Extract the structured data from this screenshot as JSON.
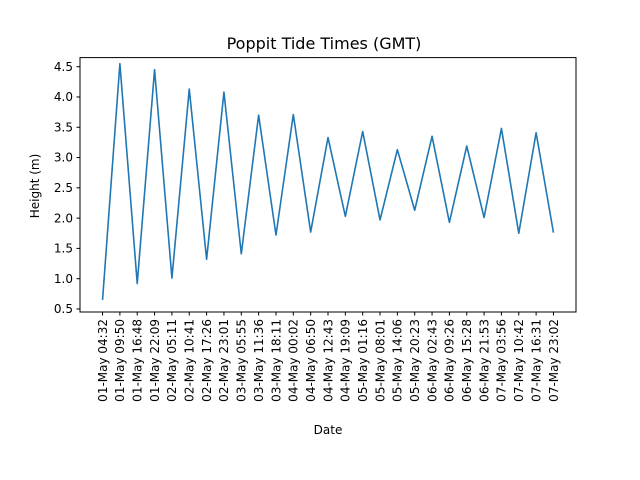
{
  "chart_data": {
    "type": "line",
    "title": "Poppit Tide Times (GMT)",
    "xlabel": "Date",
    "ylabel": "Height (m)",
    "ylim": [
      0.45,
      4.65
    ],
    "yticks": [
      "0.5",
      "1.0",
      "1.5",
      "2.0",
      "2.5",
      "3.0",
      "3.5",
      "4.0",
      "4.5"
    ],
    "grid": false,
    "line_color": "#1f77b4",
    "x": [
      "01-May 04:32",
      "01-May 09:50",
      "01-May 16:48",
      "01-May 22:09",
      "02-May 05:11",
      "02-May 10:41",
      "02-May 17:26",
      "02-May 23:01",
      "03-May 05:55",
      "03-May 11:36",
      "03-May 18:11",
      "04-May 00:02",
      "04-May 06:50",
      "04-May 12:43",
      "04-May 19:09",
      "05-May 01:16",
      "05-May 08:01",
      "05-May 14:06",
      "05-May 20:23",
      "06-May 02:43",
      "06-May 09:26",
      "06-May 15:28",
      "06-May 21:53",
      "07-May 03:56",
      "07-May 10:42",
      "07-May 16:31",
      "07-May 23:02"
    ],
    "values": [
      0.65,
      4.55,
      0.92,
      4.45,
      1.01,
      4.13,
      1.32,
      4.08,
      1.41,
      3.7,
      1.72,
      3.71,
      1.77,
      3.33,
      2.03,
      3.43,
      1.97,
      3.13,
      2.13,
      3.35,
      1.93,
      3.19,
      2.01,
      3.48,
      1.75,
      3.41,
      1.76
    ]
  }
}
